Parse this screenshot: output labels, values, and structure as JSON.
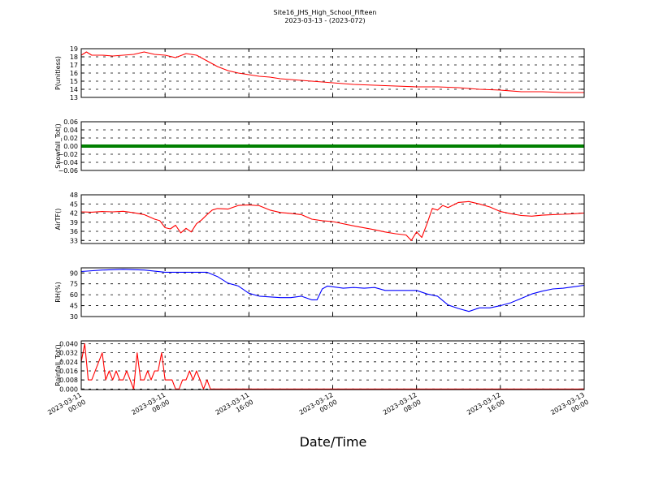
{
  "figure": {
    "title": "Site16_JHS_High_School_Fifteen",
    "subtitle": "2023-03-13 - (2023-072)",
    "xlabel": "Date/Time"
  },
  "chart_data": [
    {
      "type": "line",
      "ylabel": "P(unitless)",
      "ylim": [
        13,
        19
      ],
      "yticks": [
        "13",
        "14",
        "15",
        "16",
        "17",
        "18",
        "19"
      ],
      "grid": true,
      "series": [
        {
          "color": "#ff0000",
          "x": [
            "2023-03-11 00:00",
            "2023-03-11 00:30",
            "2023-03-11 01:00",
            "2023-03-11 02:00",
            "2023-03-11 03:00",
            "2023-03-11 04:00",
            "2023-03-11 05:00",
            "2023-03-11 06:00",
            "2023-03-11 07:00",
            "2023-03-11 08:00",
            "2023-03-11 09:00",
            "2023-03-11 10:00",
            "2023-03-11 11:00",
            "2023-03-11 12:00",
            "2023-03-11 13:00",
            "2023-03-11 14:00",
            "2023-03-11 15:00",
            "2023-03-11 16:00",
            "2023-03-11 17:00",
            "2023-03-11 18:00",
            "2023-03-11 19:00",
            "2023-03-11 20:00",
            "2023-03-11 22:00",
            "2023-03-12 00:00",
            "2023-03-12 02:00",
            "2023-03-12 04:00",
            "2023-03-12 06:00",
            "2023-03-12 08:00",
            "2023-03-12 10:00",
            "2023-03-12 12:00",
            "2023-03-12 14:00",
            "2023-03-12 16:00",
            "2023-03-12 18:00",
            "2023-03-12 20:00",
            "2023-03-12 22:00",
            "2023-03-13 00:00"
          ],
          "y": [
            18.2,
            18.6,
            18.2,
            18.2,
            18.1,
            18.2,
            18.3,
            18.6,
            18.3,
            18.2,
            17.9,
            18.4,
            18.2,
            17.5,
            16.8,
            16.3,
            16.0,
            15.8,
            15.6,
            15.5,
            15.3,
            15.2,
            15.0,
            14.8,
            14.6,
            14.5,
            14.4,
            14.3,
            14.3,
            14.2,
            14.0,
            13.9,
            13.7,
            13.7,
            13.6,
            13.6
          ]
        }
      ]
    },
    {
      "type": "scatter",
      "ylabel": "Snowfall_Tot()",
      "ylim": [
        -0.06,
        0.06
      ],
      "yticks": [
        "−0.06",
        "−0.04",
        "−0.02",
        "0.00",
        "0.02",
        "0.04",
        "0.06"
      ],
      "grid": true,
      "series": [
        {
          "color": "#008000",
          "x_start": "2023-03-11 00:00",
          "x_end": "2023-03-13 00:00",
          "constant_value": 0.0
        }
      ]
    },
    {
      "type": "line",
      "ylabel": "AirTF()",
      "ylim": [
        32,
        48
      ],
      "yticks": [
        "33",
        "36",
        "39",
        "42",
        "45",
        "48"
      ],
      "grid": true,
      "series": [
        {
          "color": "#ff0000",
          "x": [
            "2023-03-11 00:00",
            "2023-03-11 01:00",
            "2023-03-11 02:00",
            "2023-03-11 03:00",
            "2023-03-11 04:00",
            "2023-03-11 05:00",
            "2023-03-11 06:00",
            "2023-03-11 07:00",
            "2023-03-11 07:30",
            "2023-03-11 08:00",
            "2023-03-11 08:30",
            "2023-03-11 09:00",
            "2023-03-11 09:30",
            "2023-03-11 10:00",
            "2023-03-11 10:30",
            "2023-03-11 11:00",
            "2023-03-11 11:30",
            "2023-03-11 12:00",
            "2023-03-11 12:30",
            "2023-03-11 13:00",
            "2023-03-11 14:00",
            "2023-03-11 15:00",
            "2023-03-11 16:00",
            "2023-03-11 17:00",
            "2023-03-11 18:00",
            "2023-03-11 19:00",
            "2023-03-11 20:00",
            "2023-03-11 21:00",
            "2023-03-11 22:00",
            "2023-03-11 23:00",
            "2023-03-12 00:00",
            "2023-03-12 02:00",
            "2023-03-12 04:00",
            "2023-03-12 05:00",
            "2023-03-12 06:00",
            "2023-03-12 07:00",
            "2023-03-12 07:30",
            "2023-03-12 08:00",
            "2023-03-12 08:30",
            "2023-03-12 09:00",
            "2023-03-12 09:30",
            "2023-03-12 10:00",
            "2023-03-12 10:30",
            "2023-03-12 11:00",
            "2023-03-12 12:00",
            "2023-03-12 13:00",
            "2023-03-12 14:00",
            "2023-03-12 15:00",
            "2023-03-12 16:00",
            "2023-03-12 17:00",
            "2023-03-12 18:00",
            "2023-03-12 19:00",
            "2023-03-12 20:00",
            "2023-03-12 21:00",
            "2023-03-12 22:00",
            "2023-03-12 23:00",
            "2023-03-13 00:00"
          ],
          "y": [
            42.4,
            42.3,
            42.5,
            42.4,
            42.6,
            42.1,
            41.5,
            40.0,
            39.5,
            37.2,
            36.8,
            38.0,
            35.5,
            37.0,
            35.8,
            38.5,
            39.8,
            41.5,
            43.0,
            43.5,
            43.3,
            44.5,
            44.7,
            44.4,
            43.0,
            42.2,
            41.9,
            41.5,
            40.0,
            39.5,
            39.2,
            37.8,
            36.5,
            35.8,
            35.2,
            34.8,
            33.0,
            35.8,
            34.0,
            38.5,
            43.5,
            43.0,
            44.5,
            43.8,
            45.5,
            45.8,
            45.0,
            44.0,
            42.5,
            41.8,
            41.2,
            41.0,
            41.3,
            41.5,
            41.6,
            41.8,
            42.0
          ]
        }
      ]
    },
    {
      "type": "line",
      "ylabel": "RH(%)",
      "ylim": [
        30,
        97
      ],
      "yticks": [
        "30",
        "45",
        "60",
        "75",
        "90"
      ],
      "grid": true,
      "series": [
        {
          "color": "#0000ff",
          "x": [
            "2023-03-11 00:00",
            "2023-03-11 02:00",
            "2023-03-11 04:00",
            "2023-03-11 06:00",
            "2023-03-11 08:00",
            "2023-03-11 10:00",
            "2023-03-11 12:00",
            "2023-03-11 13:00",
            "2023-03-11 14:00",
            "2023-03-11 15:00",
            "2023-03-11 16:00",
            "2023-03-11 17:00",
            "2023-03-11 18:00",
            "2023-03-11 19:00",
            "2023-03-11 20:00",
            "2023-03-11 21:00",
            "2023-03-11 22:00",
            "2023-03-11 22:30",
            "2023-03-11 23:00",
            "2023-03-11 23:30",
            "2023-03-12 00:00",
            "2023-03-12 01:00",
            "2023-03-12 02:00",
            "2023-03-12 03:00",
            "2023-03-12 04:00",
            "2023-03-12 05:00",
            "2023-03-12 06:00",
            "2023-03-12 07:00",
            "2023-03-12 08:00",
            "2023-03-12 09:00",
            "2023-03-12 10:00",
            "2023-03-12 11:00",
            "2023-03-12 12:00",
            "2023-03-12 13:00",
            "2023-03-12 14:00",
            "2023-03-12 15:00",
            "2023-03-12 16:00",
            "2023-03-12 17:00",
            "2023-03-12 18:00",
            "2023-03-12 19:00",
            "2023-03-12 20:00",
            "2023-03-12 21:00",
            "2023-03-12 22:00",
            "2023-03-12 23:00",
            "2023-03-13 00:00"
          ],
          "y": [
            92,
            94,
            95,
            94,
            91,
            91,
            91,
            85,
            76,
            72,
            62,
            58,
            57,
            56,
            56,
            58,
            53,
            53,
            68,
            72,
            71,
            69,
            70,
            69,
            70,
            66,
            66,
            66,
            66,
            61,
            58,
            46,
            41,
            37,
            42,
            42,
            45,
            49,
            55,
            61,
            65,
            68,
            69,
            71,
            73
          ]
        }
      ]
    },
    {
      "type": "line",
      "ylabel": "Rainfall_Tot()",
      "ylim": [
        -0.0005,
        0.0425
      ],
      "yticks": [
        "0.000",
        "0.008",
        "0.016",
        "0.024",
        "0.032",
        "0.040"
      ],
      "grid": true,
      "series": [
        {
          "color": "#ff0000",
          "x": [
            "2023-03-11 00:00",
            "2023-03-11 00:20",
            "2023-03-11 00:40",
            "2023-03-11 01:00",
            "2023-03-11 02:00",
            "2023-03-11 02:20",
            "2023-03-11 02:40",
            "2023-03-11 03:00",
            "2023-03-11 03:20",
            "2023-03-11 03:40",
            "2023-03-11 04:00",
            "2023-03-11 04:20",
            "2023-03-11 04:40",
            "2023-03-11 05:00",
            "2023-03-11 05:20",
            "2023-03-11 05:40",
            "2023-03-11 06:00",
            "2023-03-11 06:20",
            "2023-03-11 06:40",
            "2023-03-11 07:00",
            "2023-03-11 07:20",
            "2023-03-11 07:40",
            "2023-03-11 08:00",
            "2023-03-11 08:20",
            "2023-03-11 08:40",
            "2023-03-11 09:00",
            "2023-03-11 09:20",
            "2023-03-11 09:40",
            "2023-03-11 10:00",
            "2023-03-11 10:20",
            "2023-03-11 10:40",
            "2023-03-11 11:00",
            "2023-03-11 11:20",
            "2023-03-11 11:40",
            "2023-03-11 12:00",
            "2023-03-11 12:20",
            "2023-03-11 12:40",
            "2023-03-13 00:00"
          ],
          "y": [
            0.024,
            0.04,
            0.008,
            0.008,
            0.032,
            0.008,
            0.016,
            0.008,
            0.016,
            0.008,
            0.008,
            0.016,
            0.008,
            0.0,
            0.032,
            0.008,
            0.008,
            0.016,
            0.008,
            0.016,
            0.016,
            0.032,
            0.008,
            0.008,
            0.008,
            0.0,
            0.0,
            0.008,
            0.008,
            0.016,
            0.008,
            0.016,
            0.008,
            0.0,
            0.008,
            0.0,
            0.0,
            0.0
          ]
        }
      ]
    }
  ],
  "x_axis": {
    "range": [
      "2023-03-11 00:00",
      "2023-03-13 00:00"
    ],
    "ticks": [
      {
        "x": "2023-03-11 00:00",
        "line1": "2023-03-11",
        "line2": "00:00"
      },
      {
        "x": "2023-03-11 08:00",
        "line1": "2023-03-11",
        "line2": "08:00"
      },
      {
        "x": "2023-03-11 16:00",
        "line1": "2023-03-11",
        "line2": "16:00"
      },
      {
        "x": "2023-03-12 00:00",
        "line1": "2023-03-12",
        "line2": "00:00"
      },
      {
        "x": "2023-03-12 08:00",
        "line1": "2023-03-12",
        "line2": "08:00"
      },
      {
        "x": "2023-03-12 16:00",
        "line1": "2023-03-12",
        "line2": "16:00"
      },
      {
        "x": "2023-03-13 00:00",
        "line1": "2023-03-13",
        "line2": "00:00"
      }
    ]
  }
}
